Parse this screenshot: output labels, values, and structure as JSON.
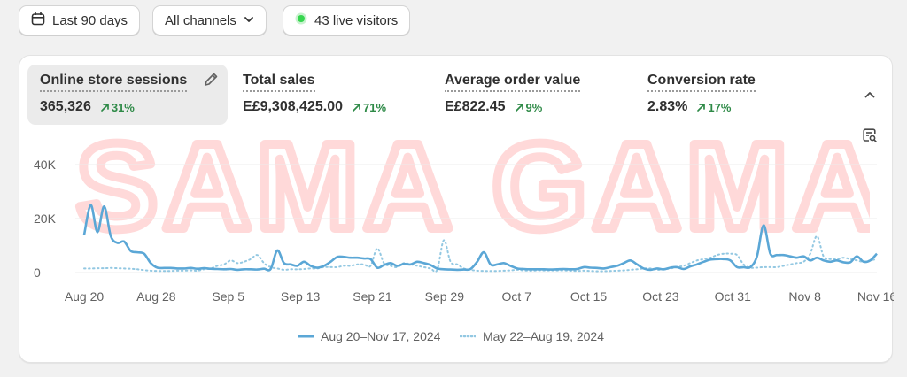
{
  "filters": {
    "date_range": "Last 90 days",
    "channels": "All channels",
    "live_visitors": "43 live visitors"
  },
  "metrics": [
    {
      "label": "Online store sessions",
      "value": "365,326",
      "change": "31%"
    },
    {
      "label": "Total sales",
      "value": "E£9,308,425.00",
      "change": "71%"
    },
    {
      "label": "Average order value",
      "value": "E£822.45",
      "change": "9%"
    },
    {
      "label": "Conversion rate",
      "value": "2.83%",
      "change": "17%"
    }
  ],
  "watermark": "OSAMA GAMAL",
  "colors": {
    "current": "#5ba7d6",
    "previous": "#93c8e2",
    "positive": "#2e8a47",
    "live": "#36d64f"
  },
  "chart_data": {
    "type": "line",
    "ylim": [
      0,
      40000
    ],
    "y_ticks": [
      "40K",
      "20K",
      "0"
    ],
    "x_ticks": [
      "Aug 20",
      "Aug 28",
      "Sep 5",
      "Sep 13",
      "Sep 21",
      "Sep 29",
      "Oct 7",
      "Oct 15",
      "Oct 23",
      "Oct 31",
      "Nov 8",
      "Nov 16"
    ],
    "series": [
      {
        "name": "Aug 20–Nov 17, 2024",
        "style": "solid",
        "values": [
          14000,
          25000,
          15000,
          24500,
          13500,
          11000,
          11500,
          8000,
          7500,
          7000,
          3500,
          1800,
          1700,
          1700,
          1500,
          1500,
          1700,
          1400,
          1600,
          1400,
          1300,
          1200,
          1300,
          1000,
          1200,
          1200,
          1100,
          1400,
          1300,
          8200,
          3500,
          3000,
          2500,
          4000,
          2500,
          1800,
          2500,
          4000,
          5800,
          5800,
          5500,
          5500,
          5200,
          5000,
          1800,
          2800,
          3500,
          2500,
          3200,
          3000,
          4000,
          3500,
          2800,
          1500,
          1200,
          1100,
          1000,
          1100,
          1300,
          4000,
          7500,
          3000,
          3000,
          3500,
          2500,
          1500,
          1300,
          1200,
          1200,
          1200,
          1100,
          1200,
          1300,
          1200,
          1300,
          2000,
          1800,
          1700,
          1500,
          2000,
          2500,
          3500,
          4500,
          3000,
          1500,
          1000,
          1500,
          1200,
          1800,
          2000,
          1300,
          2300,
          3000,
          4000,
          4800,
          5000,
          5000,
          4500,
          2000,
          2000,
          2000,
          6000,
          17500,
          7000,
          6500,
          6500,
          6000,
          5500,
          6000,
          4500,
          5500,
          4500,
          4000,
          4500,
          3800,
          3800,
          6000,
          4000,
          4500,
          7000
        ]
      },
      {
        "name": "May 22–Aug 19, 2024",
        "style": "dotted",
        "values": [
          1500,
          1500,
          1600,
          1600,
          1700,
          1600,
          1500,
          1400,
          1200,
          900,
          700,
          600,
          600,
          600,
          700,
          700,
          800,
          700,
          1200,
          1500,
          2500,
          3000,
          4500,
          3500,
          4000,
          5000,
          6500,
          3500,
          2000,
          1500,
          1000,
          1200,
          1200,
          1300,
          1500,
          1500,
          2000,
          2000,
          2000,
          2500,
          2500,
          3000,
          3000,
          2500,
          9000,
          3500,
          2500,
          2000,
          3500,
          3000,
          2500,
          2000,
          1500,
          1000,
          12000,
          4000,
          3000,
          1500,
          1000,
          700,
          600,
          600,
          600,
          700,
          800,
          1000,
          800,
          700,
          800,
          800,
          800,
          800,
          800,
          700,
          600,
          700,
          600,
          500,
          500,
          600,
          700,
          800,
          1000,
          1200,
          1500,
          1500,
          1000,
          1200,
          1500,
          2000,
          2500,
          3500,
          4500,
          5000,
          5500,
          6500,
          7000,
          7000,
          6500,
          3000,
          1800,
          1800,
          2000,
          2000,
          2000,
          2500,
          3000,
          3500,
          4000,
          7000,
          13500,
          6000,
          5000,
          5000,
          5500,
          5000,
          4500,
          4000,
          4500,
          5000
        ]
      }
    ]
  }
}
